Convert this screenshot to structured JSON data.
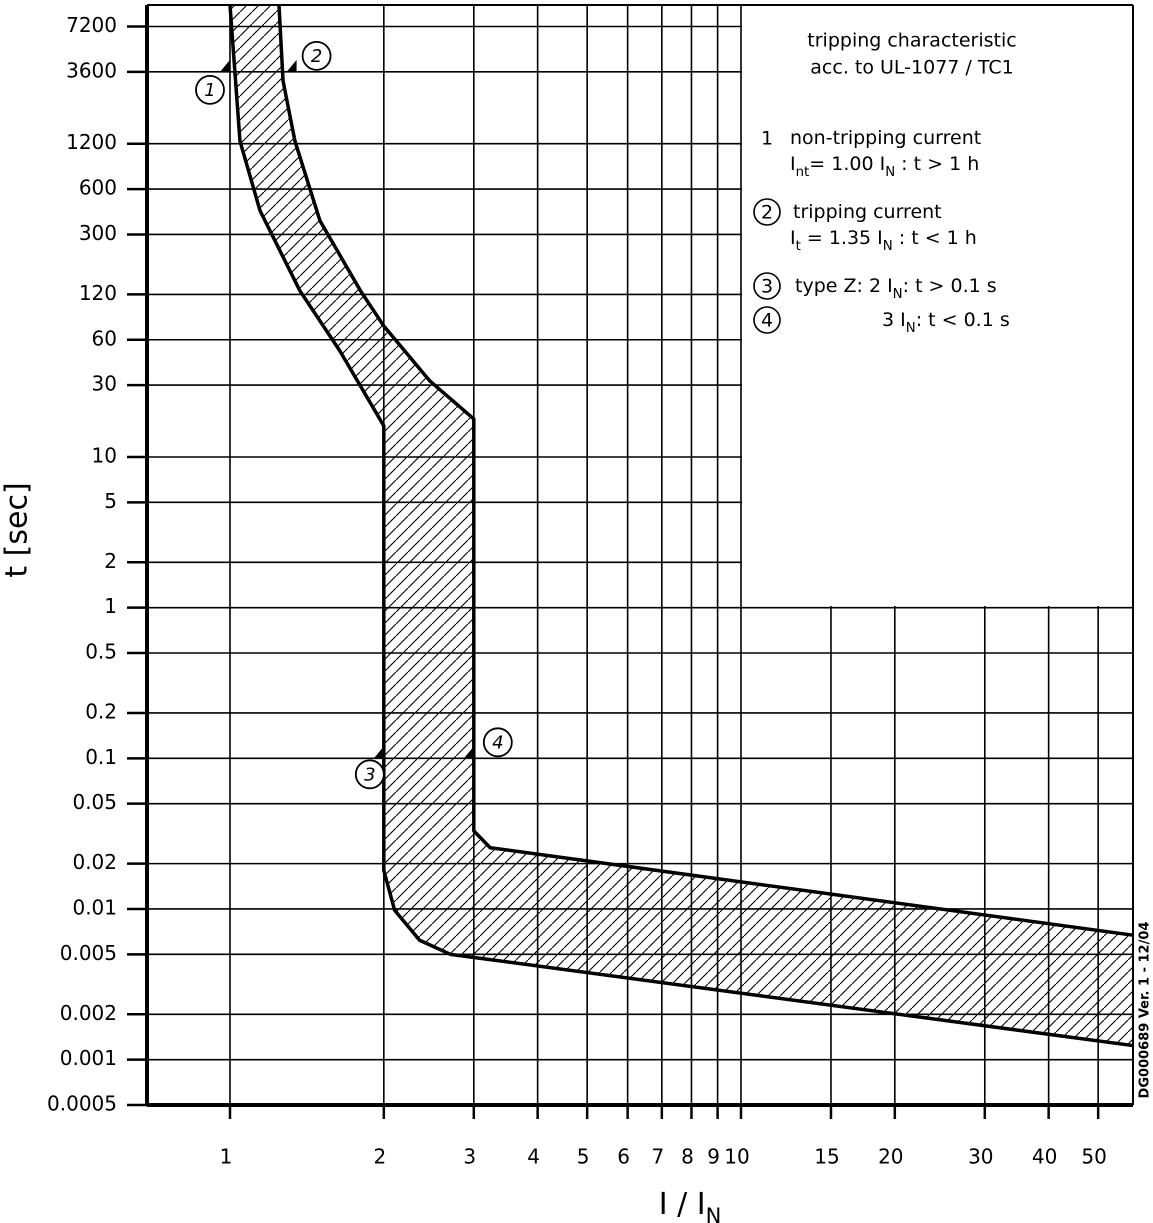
{
  "chart_data": {
    "type": "line",
    "title": [
      "tripping characteristic",
      "acc. to UL-1077 / TC1"
    ],
    "y_label": "t [sec]",
    "x_label": [
      "I / I",
      "N"
    ],
    "footnote": "DG000689  Ver. 1 - 12/04",
    "xscale": "log",
    "yscale": "log",
    "grid": true,
    "color": "#000000",
    "xlim": [
      0.688,
      58.5
    ],
    "ylim": [
      0.0005,
      10000
    ],
    "xticks": [
      1,
      2,
      3,
      4,
      5,
      6,
      7,
      8,
      9,
      10,
      15,
      20,
      30,
      40,
      50
    ],
    "yticks": [
      7200,
      3600,
      1200,
      600,
      300,
      120,
      60,
      30,
      10,
      5,
      2,
      1,
      0.5,
      0.2,
      0.1,
      0.05,
      0.02,
      0.01,
      0.005,
      0.002,
      0.001,
      0.0005
    ],
    "series": [
      {
        "x": [
          1,
          1.046,
          1.145,
          1.37,
          1.64,
          2,
          2,
          2.1,
          2.35,
          2.7,
          58.5
        ],
        "y": [
          10000,
          1250,
          431,
          127,
          50.7,
          16.1,
          0.018,
          0.0098,
          0.0062,
          0.005,
          0.00124
        ]
      },
      {
        "x": [
          1.247,
          1.27,
          1.34,
          1.5,
          1.8,
          2,
          2.46,
          3,
          3,
          3.23,
          58.5
        ],
        "y": [
          10000,
          3140,
          1250,
          370,
          127,
          74,
          32,
          17.9,
          0.033,
          0.0255,
          0.0067
        ]
      }
    ],
    "annotations": [
      {
        "label": "1",
        "x": 1,
        "y": 3600
      },
      {
        "label": "2",
        "x": 1.35,
        "y": 3600
      },
      {
        "label": "3",
        "x": 2,
        "y": 0.1
      },
      {
        "label": "4",
        "x": 3,
        "y": 0.1
      }
    ],
    "notes": [
      {
        "marker": "1",
        "lines": [
          [
            "non-tripping current"
          ],
          [
            "I",
            "nt",
            "= 1.00 I",
            "N",
            " : t > 1 h"
          ]
        ]
      },
      {
        "marker": "2",
        "lines": [
          [
            "tripping current"
          ],
          [
            "I",
            "t",
            " = 1.35 I",
            "N",
            " : t < 1 h"
          ]
        ]
      },
      {
        "marker": "3",
        "lines": [
          [
            "type Z:  2 I",
            "N",
            ": t > 0.1 s"
          ]
        ]
      },
      {
        "marker": "4",
        "lines": [
          [
            "3 I",
            "N",
            ": t < 0.1 s"
          ]
        ]
      }
    ]
  }
}
